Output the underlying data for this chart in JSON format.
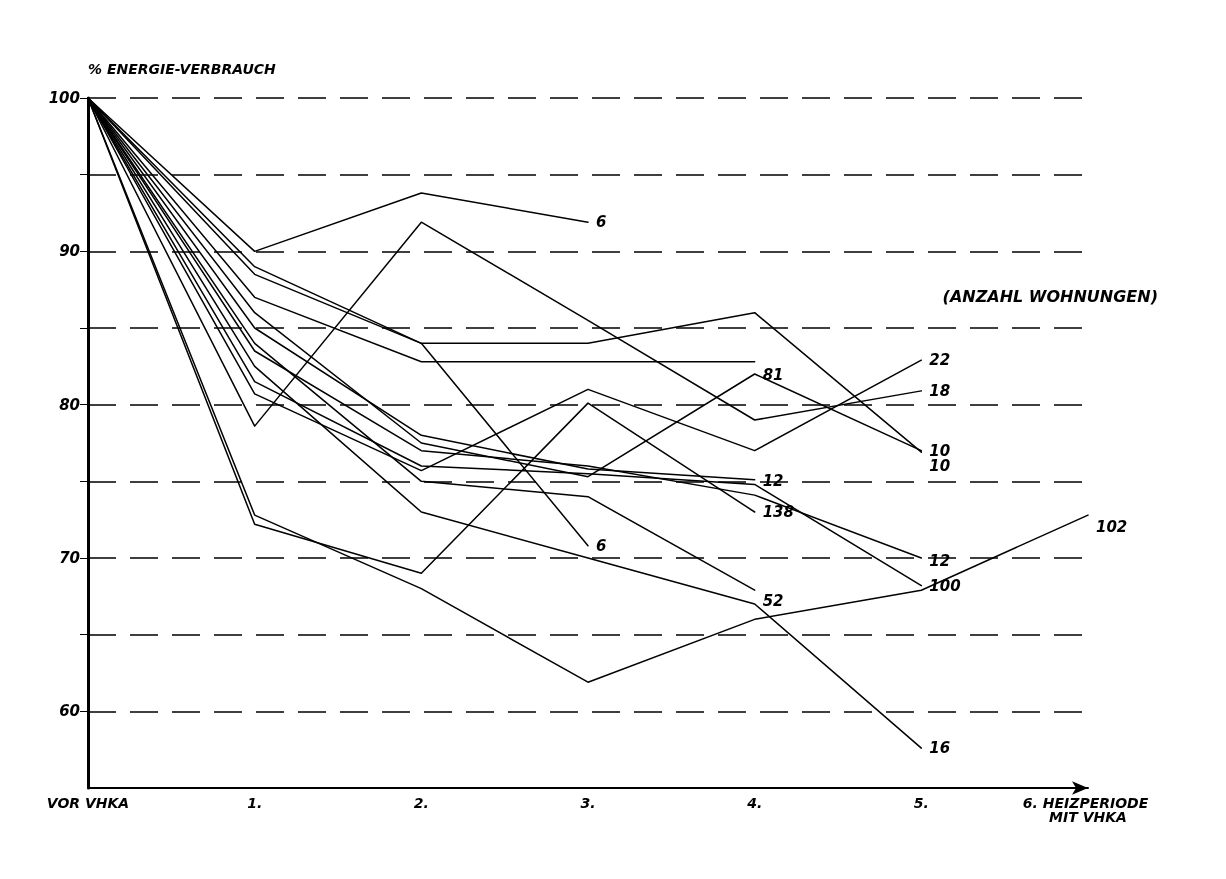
{
  "chart_data": {
    "type": "line",
    "ylabel": "% ENERGIE-VERBRAUCH",
    "categories": [
      "VOR VHKA",
      "1.",
      "2.",
      "3.",
      "4.",
      "5.",
      "6. HEIZPERIODE MIT VHKA"
    ],
    "ylim": [
      55,
      100
    ],
    "yticks": [
      60,
      {
        "value": 65,
        "label": null
      },
      70,
      {
        "value": 75,
        "label": null
      },
      80,
      {
        "value": 85,
        "label": null
      },
      90,
      {
        "value": 95,
        "label": null
      },
      100
    ],
    "grid": "y",
    "legend": false,
    "marker": "none",
    "line_style": "solid",
    "annotations": [
      "(ANZAHL WOHNUNGEN)"
    ],
    "series": [
      {
        "name": "6",
        "color": "#000000",
        "values": [
          100,
          90.0,
          93.8,
          91.9,
          null,
          null,
          null
        ]
      },
      {
        "name": "10",
        "color": "#000000",
        "values": [
          100,
          88.5,
          84.0,
          84.0,
          86.0,
          76.9,
          null
        ]
      },
      {
        "name": "81",
        "color": "#000000",
        "values": [
          100,
          87.0,
          82.8,
          82.8,
          82.8,
          null,
          null
        ]
      },
      {
        "name": "22",
        "color": "#000000",
        "values": [
          100,
          80.7,
          75.7,
          81.0,
          77.0,
          82.9,
          null
        ]
      },
      {
        "name": "18",
        "color": "#000000",
        "values": [
          100,
          78.6,
          91.9,
          85.5,
          79.0,
          80.9,
          null
        ]
      },
      {
        "name": "10",
        "color": "#000000",
        "values": [
          100,
          86.0,
          77.5,
          75.3,
          82.0,
          77.0,
          null
        ]
      },
      {
        "name": "12",
        "color": "#000000",
        "values": [
          100,
          85.0,
          78.0,
          75.8,
          75.1,
          null,
          null
        ]
      },
      {
        "name": "138",
        "color": "#000000",
        "values": [
          100,
          72.2,
          69.0,
          80.1,
          73.0,
          null,
          null
        ]
      },
      {
        "name": "6",
        "color": "#000000",
        "values": [
          100,
          89.0,
          84.0,
          70.8,
          null,
          null,
          null
        ]
      },
      {
        "name": "12",
        "color": "#000000",
        "values": [
          100,
          83.5,
          77.0,
          76.0,
          74.1,
          70.0,
          null
        ]
      },
      {
        "name": "100",
        "color": "#000000",
        "values": [
          100,
          81.5,
          76.0,
          75.5,
          74.8,
          68.2,
          null
        ]
      },
      {
        "name": "52",
        "color": "#000000",
        "values": [
          100,
          84.0,
          75.0,
          74.0,
          67.9,
          null,
          null
        ]
      },
      {
        "name": "102",
        "color": "#000000",
        "values": [
          100,
          72.8,
          68.0,
          61.9,
          66.0,
          67.9,
          72.8
        ]
      },
      {
        "name": "16",
        "color": "#000000",
        "values": [
          100,
          82.5,
          73.0,
          70.0,
          67.0,
          57.6,
          null
        ]
      }
    ]
  }
}
